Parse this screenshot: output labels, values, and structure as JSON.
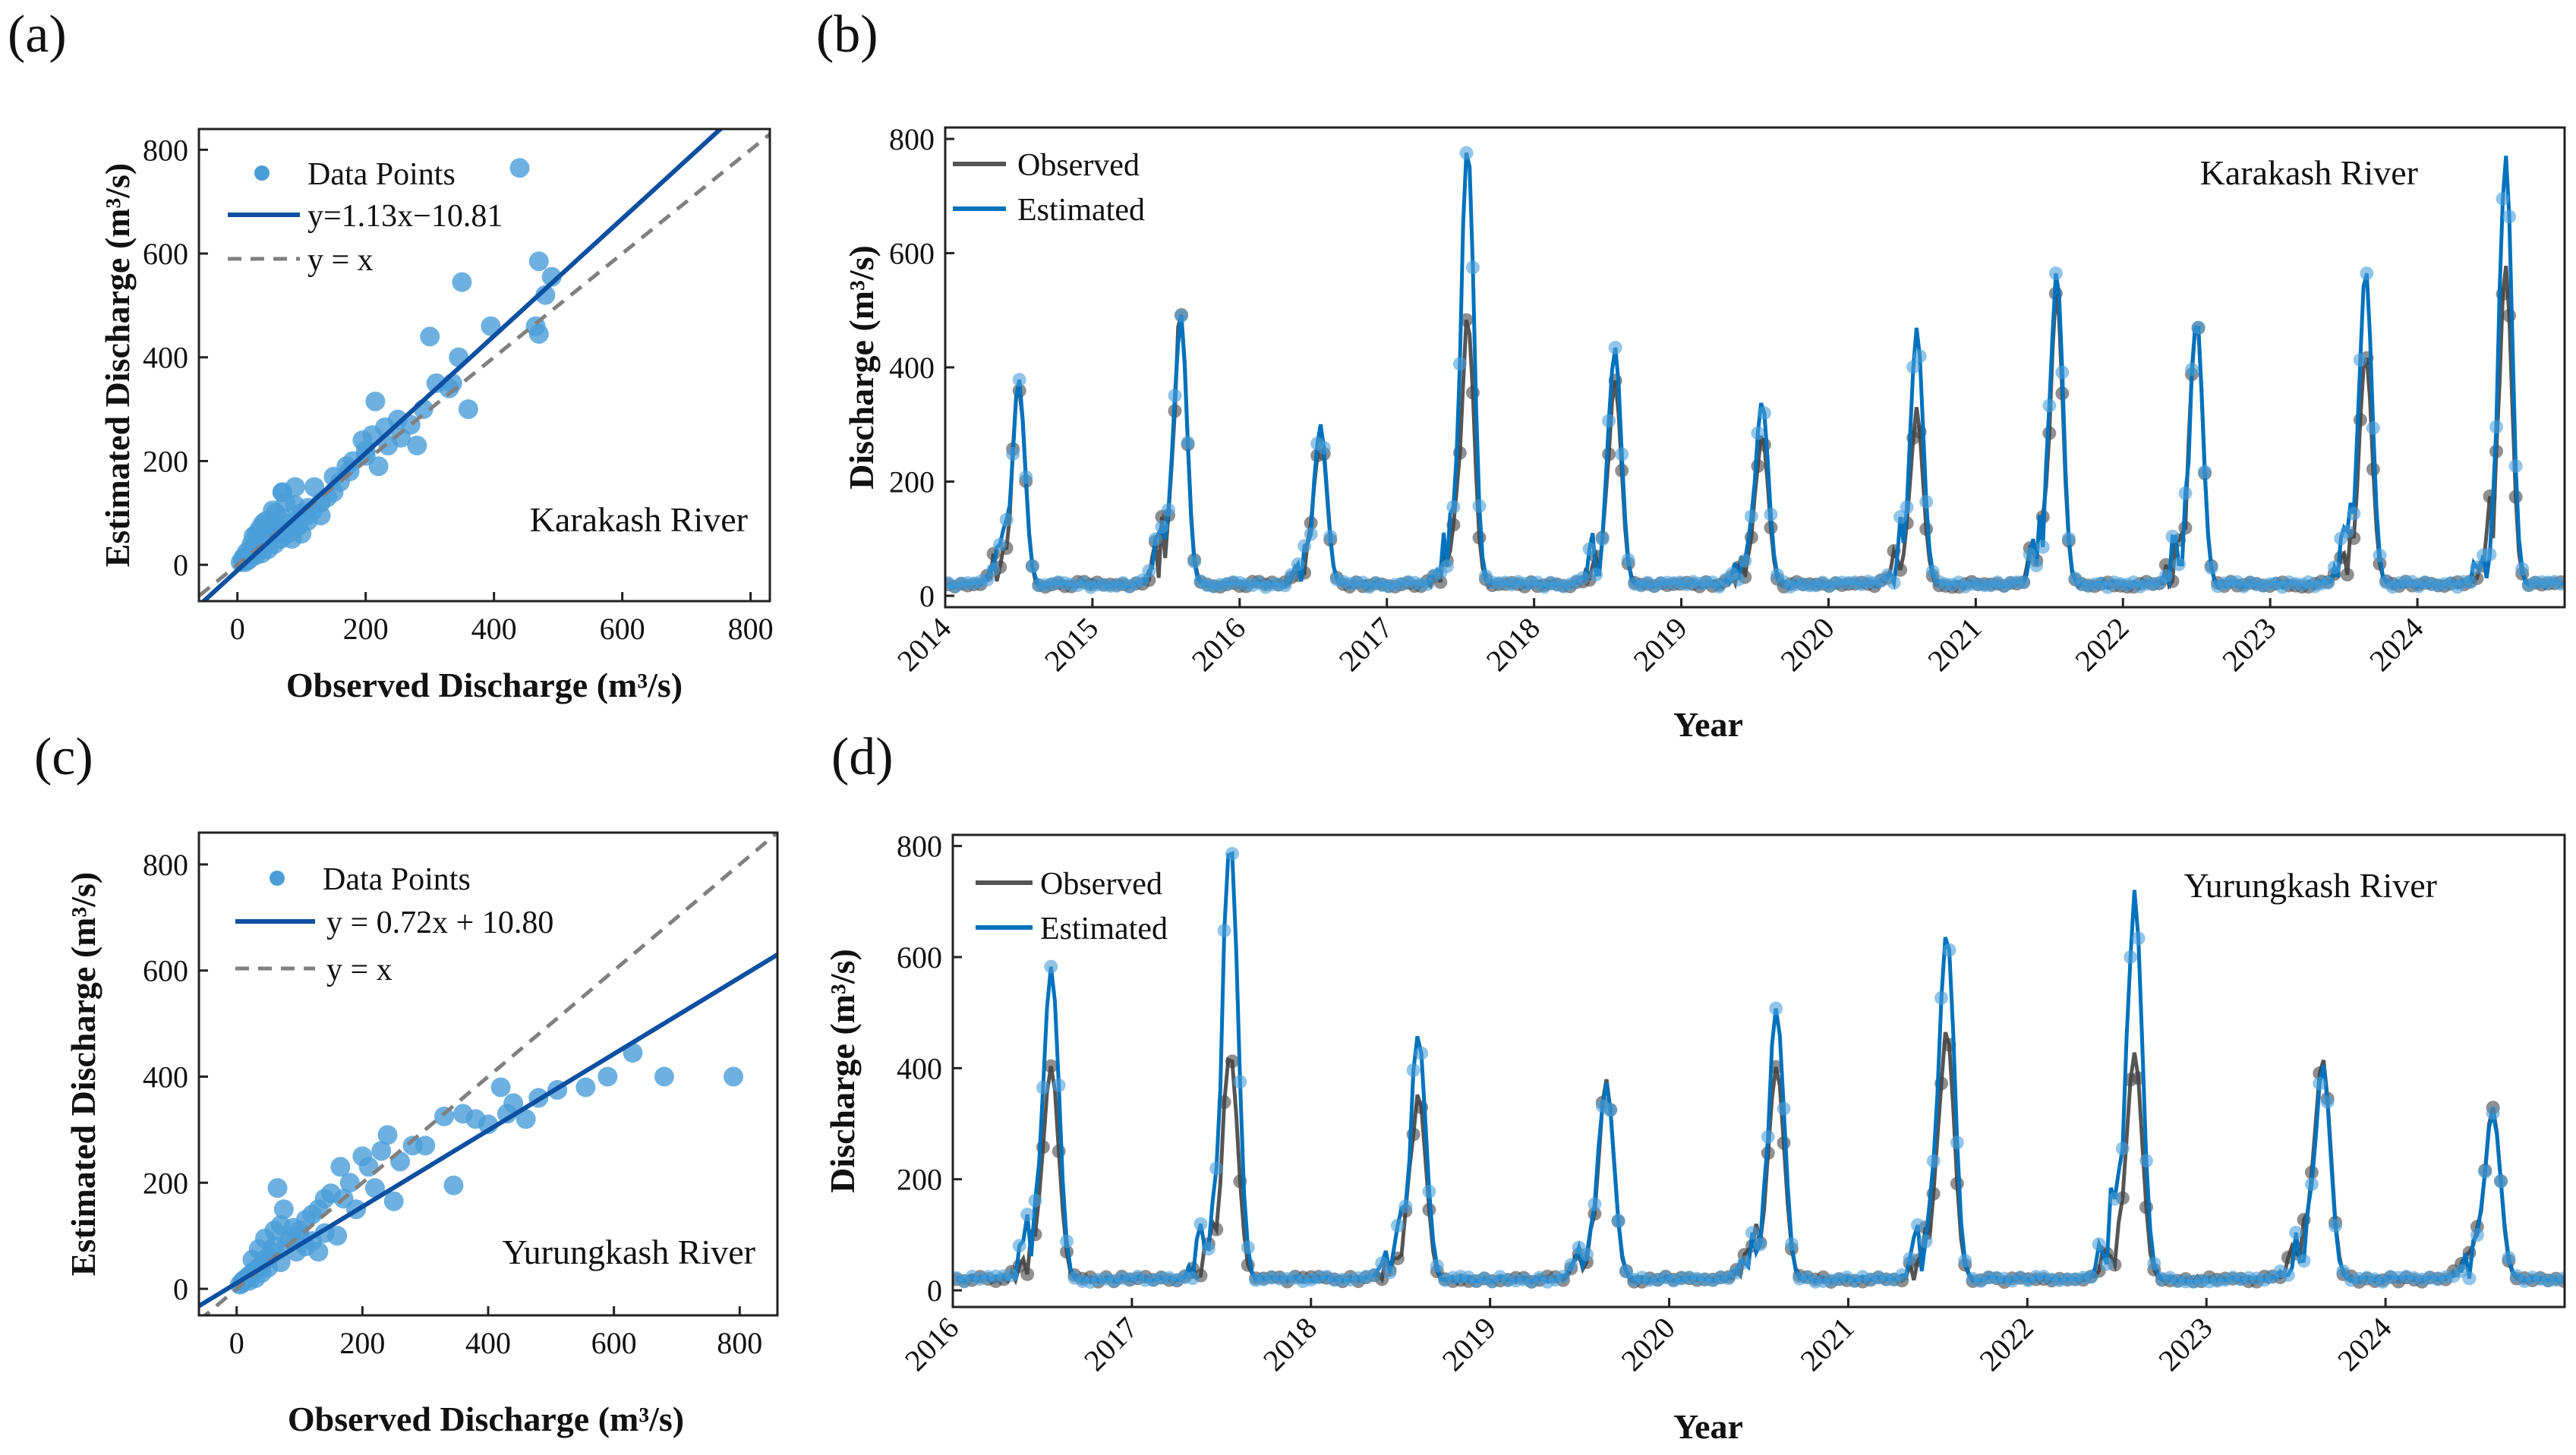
{
  "panels": {
    "a": {
      "label": "(a)"
    },
    "b": {
      "label": "(b)"
    },
    "c": {
      "label": "(c)"
    },
    "d": {
      "label": "(d)"
    }
  },
  "colors": {
    "blue": "#0072BD",
    "blue_points": "#4A9ED8",
    "fit_line": "#0D4FA0",
    "observed": "#555555",
    "identity": "#808080"
  },
  "chart_data": [
    {
      "id": "a",
      "type": "scatter",
      "xlabel": "Observed Discharge (m³/s)",
      "ylabel": "Estimated Discharge (m³/s)",
      "xlim": [
        -60,
        830
      ],
      "ylim": [
        -70,
        840
      ],
      "xticks": [
        0,
        200,
        400,
        600,
        800
      ],
      "yticks": [
        0,
        200,
        400,
        600,
        800
      ],
      "annotation": "Karakash River",
      "legend": [
        "Data Points",
        "y=1.13x−10.81",
        "y = x"
      ],
      "fit": {
        "slope": 1.13,
        "intercept": -10.81
      },
      "points": [
        [
          440,
          765
        ],
        [
          470,
          585
        ],
        [
          490,
          555
        ],
        [
          350,
          545
        ],
        [
          480,
          520
        ],
        [
          465,
          460
        ],
        [
          470,
          445
        ],
        [
          395,
          460
        ],
        [
          345,
          400
        ],
        [
          335,
          350
        ],
        [
          360,
          300
        ],
        [
          300,
          440
        ],
        [
          290,
          300
        ],
        [
          270,
          270
        ],
        [
          250,
          280
        ],
        [
          230,
          265
        ],
        [
          215,
          315
        ],
        [
          210,
          250
        ],
        [
          200,
          210
        ],
        [
          220,
          190
        ],
        [
          195,
          240
        ],
        [
          180,
          200
        ],
        [
          175,
          180
        ],
        [
          160,
          160
        ],
        [
          150,
          140
        ],
        [
          140,
          130
        ],
        [
          130,
          120
        ],
        [
          120,
          150
        ],
        [
          110,
          110
        ],
        [
          100,
          100
        ],
        [
          90,
          115
        ],
        [
          80,
          80
        ],
        [
          75,
          120
        ],
        [
          70,
          90
        ],
        [
          65,
          70
        ],
        [
          60,
          60
        ],
        [
          55,
          75
        ],
        [
          50,
          55
        ],
        [
          45,
          45
        ],
        [
          40,
          50
        ],
        [
          35,
          40
        ],
        [
          30,
          30
        ],
        [
          25,
          35
        ],
        [
          20,
          20
        ],
        [
          15,
          25
        ],
        [
          10,
          15
        ],
        [
          8,
          10
        ],
        [
          5,
          5
        ],
        [
          100,
          60
        ],
        [
          85,
          50
        ],
        [
          95,
          75
        ],
        [
          110,
          85
        ],
        [
          130,
          95
        ],
        [
          70,
          140
        ],
        [
          60,
          100
        ],
        [
          40,
          80
        ],
        [
          30,
          60
        ],
        [
          22,
          40
        ],
        [
          18,
          10
        ],
        [
          12,
          5
        ],
        [
          28,
          18
        ],
        [
          38,
          22
        ],
        [
          48,
          30
        ],
        [
          58,
          40
        ],
        [
          68,
          50
        ],
        [
          78,
          60
        ],
        [
          88,
          70
        ],
        [
          98,
          90
        ],
        [
          108,
          95
        ],
        [
          118,
          105
        ],
        [
          70,
          140
        ],
        [
          90,
          150
        ],
        [
          55,
          105
        ],
        [
          45,
          85
        ],
        [
          35,
          70
        ],
        [
          25,
          55
        ],
        [
          150,
          170
        ],
        [
          170,
          190
        ],
        [
          200,
          220
        ],
        [
          235,
          230
        ],
        [
          255,
          245
        ],
        [
          310,
          350
        ],
        [
          330,
          340
        ],
        [
          280,
          230
        ]
      ]
    },
    {
      "id": "b",
      "type": "line",
      "xlabel": "Year",
      "ylabel": "Discharge (m³/s)",
      "xlim": [
        2014,
        2025
      ],
      "ylim": [
        -20,
        820
      ],
      "xticks": [
        2014,
        2015,
        2016,
        2017,
        2018,
        2019,
        2020,
        2021,
        2022,
        2023,
        2024
      ],
      "yticks": [
        0,
        200,
        400,
        600,
        800
      ],
      "annotation": "Karakash River",
      "legend": [
        "Observed",
        "Estimated"
      ],
      "peaks": [
        [
          2014.5,
          350,
          340
        ],
        [
          2015.6,
          465,
          470
        ],
        [
          2016.55,
          270,
          260
        ],
        [
          2017.55,
          760,
          460
        ],
        [
          2018.55,
          410,
          350
        ],
        [
          2019.55,
          310,
          260
        ],
        [
          2020.6,
          445,
          300
        ],
        [
          2021.55,
          545,
          500
        ],
        [
          2022.5,
          460,
          460
        ],
        [
          2023.65,
          540,
          400
        ],
        [
          2024.6,
          750,
          550
        ]
      ]
    },
    {
      "id": "c",
      "type": "scatter",
      "xlabel": "Observed Discharge (m³/s)",
      "ylabel": "Estimated Discharge (m³/s)",
      "xlim": [
        -60,
        860
      ],
      "ylim": [
        -50,
        860
      ],
      "xticks": [
        0,
        200,
        400,
        600,
        800
      ],
      "yticks": [
        0,
        200,
        400,
        600,
        800
      ],
      "annotation": "Yurungkash River",
      "legend": [
        "Data Points",
        "y = 0.72x + 10.80",
        "y = x"
      ],
      "fit": {
        "slope": 0.72,
        "intercept": 10.8
      },
      "points": [
        [
          790,
          400
        ],
        [
          680,
          400
        ],
        [
          630,
          445
        ],
        [
          590,
          400
        ],
        [
          555,
          380
        ],
        [
          510,
          375
        ],
        [
          480,
          360
        ],
        [
          460,
          320
        ],
        [
          440,
          350
        ],
        [
          420,
          380
        ],
        [
          430,
          330
        ],
        [
          400,
          310
        ],
        [
          380,
          320
        ],
        [
          360,
          330
        ],
        [
          345,
          195
        ],
        [
          330,
          325
        ],
        [
          300,
          270
        ],
        [
          280,
          270
        ],
        [
          260,
          240
        ],
        [
          250,
          165
        ],
        [
          240,
          290
        ],
        [
          230,
          260
        ],
        [
          210,
          230
        ],
        [
          200,
          250
        ],
        [
          180,
          200
        ],
        [
          170,
          170
        ],
        [
          165,
          230
        ],
        [
          150,
          180
        ],
        [
          140,
          170
        ],
        [
          130,
          150
        ],
        [
          120,
          140
        ],
        [
          110,
          130
        ],
        [
          100,
          110
        ],
        [
          95,
          70
        ],
        [
          90,
          115
        ],
        [
          85,
          95
        ],
        [
          80,
          85
        ],
        [
          75,
          150
        ],
        [
          70,
          120
        ],
        [
          65,
          190
        ],
        [
          60,
          80
        ],
        [
          55,
          70
        ],
        [
          50,
          60
        ],
        [
          45,
          55
        ],
        [
          40,
          45
        ],
        [
          35,
          40
        ],
        [
          30,
          35
        ],
        [
          25,
          30
        ],
        [
          20,
          25
        ],
        [
          15,
          20
        ],
        [
          10,
          15
        ],
        [
          8,
          10
        ],
        [
          5,
          8
        ],
        [
          60,
          110
        ],
        [
          100,
          100
        ],
        [
          110,
          80
        ],
        [
          130,
          70
        ],
        [
          160,
          100
        ],
        [
          190,
          150
        ],
        [
          220,
          190
        ],
        [
          70,
          50
        ],
        [
          50,
          40
        ],
        [
          40,
          30
        ],
        [
          30,
          20
        ],
        [
          20,
          15
        ],
        [
          45,
          95
        ],
        [
          35,
          75
        ],
        [
          25,
          55
        ],
        [
          120,
          90
        ],
        [
          140,
          105
        ]
      ]
    },
    {
      "id": "d",
      "type": "line",
      "xlabel": "Year",
      "ylabel": "Discharge (m³/s)",
      "xlim": [
        2016,
        2025
      ],
      "ylim": [
        -30,
        820
      ],
      "xticks": [
        2016,
        2017,
        2018,
        2019,
        2020,
        2021,
        2022,
        2023,
        2024
      ],
      "yticks": [
        0,
        200,
        400,
        600,
        800
      ],
      "annotation": "Yurungkash River",
      "legend": [
        "Observed",
        "Estimated"
      ],
      "peaks": [
        [
          2016.55,
          560,
          380
        ],
        [
          2017.55,
          790,
          400
        ],
        [
          2018.6,
          430,
          330
        ],
        [
          2019.65,
          350,
          350
        ],
        [
          2020.6,
          480,
          380
        ],
        [
          2021.55,
          625,
          445
        ],
        [
          2022.6,
          680,
          400
        ],
        [
          2023.65,
          380,
          395
        ],
        [
          2024.6,
          300,
          305
        ]
      ]
    }
  ]
}
